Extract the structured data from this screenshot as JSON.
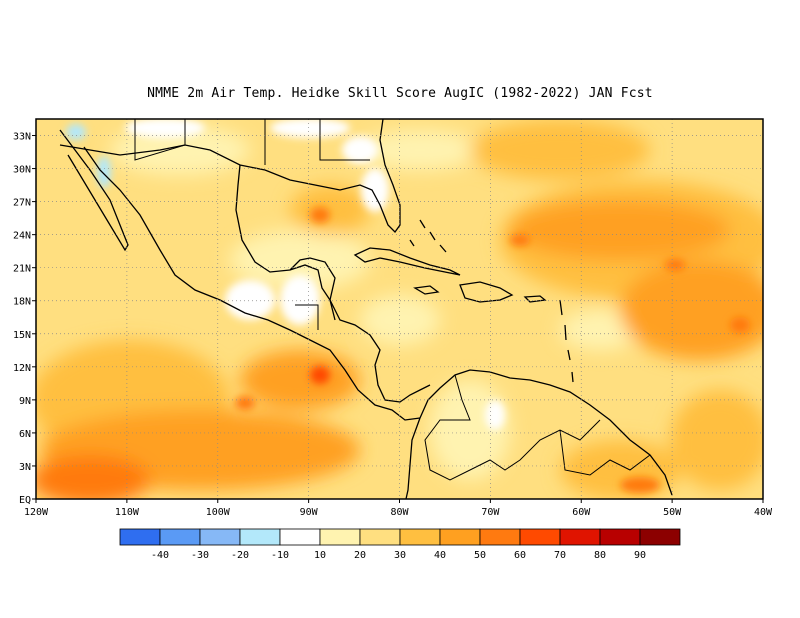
{
  "title": "NMME  2m Air Temp. Heidke Skill Score AugIC (1982-2022) JAN Fcst",
  "map": {
    "lat_labels": [
      "33N",
      "30N",
      "27N",
      "24N",
      "21N",
      "18N",
      "15N",
      "12N",
      "9N",
      "6N",
      "3N",
      "EQ"
    ],
    "lat_values": [
      33,
      30,
      27,
      24,
      21,
      18,
      15,
      12,
      9,
      6,
      3,
      0
    ],
    "lon_labels": [
      "120W",
      "110W",
      "100W",
      "90W",
      "80W",
      "70W",
      "60W",
      "50W",
      "40W"
    ],
    "lon_values": [
      -120,
      -110,
      -100,
      -90,
      -80,
      -70,
      -60,
      -50,
      -40
    ],
    "lat_range": [
      0,
      34.5
    ],
    "lon_range": [
      -120,
      -40
    ]
  },
  "colorbar": {
    "labels": [
      "-40",
      "-30",
      "-20",
      "-10",
      "10",
      "20",
      "30",
      "40",
      "50",
      "60",
      "70",
      "80",
      "90"
    ],
    "colors": [
      "#2f6ef0",
      "#5a9af5",
      "#86b8f6",
      "#b3e8fa",
      "#ffffff",
      "#fff3b0",
      "#ffdf80",
      "#ffbf40",
      "#ffa020",
      "#ff7a10",
      "#ff4a00",
      "#e01400",
      "#b80000",
      "#8c0000"
    ]
  }
}
